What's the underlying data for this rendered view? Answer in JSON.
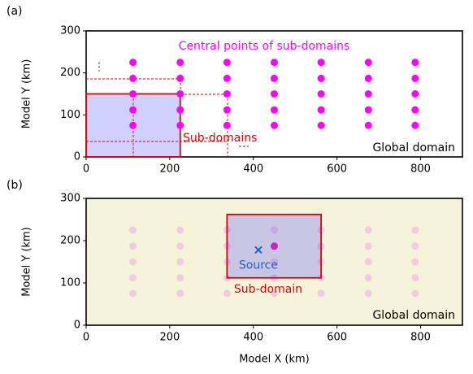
{
  "chart_data": [
    {
      "type": "scatter",
      "panel_label": "(a)",
      "ylabel": "Model Y (km)",
      "xlim": [
        0,
        900
      ],
      "ylim": [
        0,
        300
      ],
      "xticks": [
        0,
        200,
        400,
        600,
        800
      ],
      "yticks": [
        0,
        100,
        200,
        300
      ],
      "x": [
        112,
        225,
        337,
        450,
        562,
        675,
        787,
        112,
        225,
        337,
        450,
        562,
        675,
        787,
        112,
        225,
        337,
        450,
        562,
        675,
        787,
        112,
        225,
        337,
        450,
        562,
        675,
        787,
        112,
        225,
        337,
        450,
        562,
        675,
        787
      ],
      "values": [
        75,
        75,
        75,
        75,
        75,
        75,
        75,
        112,
        112,
        112,
        112,
        112,
        112,
        112,
        150,
        150,
        150,
        150,
        150,
        150,
        150,
        187,
        187,
        187,
        187,
        187,
        187,
        187,
        225,
        225,
        225,
        225,
        225,
        225,
        225
      ],
      "color": "#ff00ff",
      "domain_color": "#ffffff",
      "subdomain": {
        "x": [
          0,
          225
        ],
        "y": [
          0,
          150
        ]
      },
      "annotations": [
        "Central points of sub-domains",
        "Sub-domains",
        "Global domain"
      ]
    },
    {
      "type": "scatter",
      "panel_label": "(b)",
      "ylabel": "Model Y (km)",
      "xlabel": "Model X (km)",
      "xlim": [
        0,
        900
      ],
      "ylim": [
        0,
        300
      ],
      "xticks": [
        0,
        200,
        400,
        600,
        800
      ],
      "yticks": [
        0,
        100,
        200,
        300
      ],
      "x": [
        112,
        225,
        337,
        450,
        562,
        675,
        787,
        112,
        225,
        337,
        450,
        562,
        675,
        787,
        112,
        225,
        337,
        450,
        562,
        675,
        787,
        112,
        225,
        337,
        450,
        562,
        675,
        787,
        112,
        225,
        337,
        450,
        562,
        675,
        787
      ],
      "values": [
        75,
        75,
        75,
        75,
        75,
        75,
        75,
        112,
        112,
        112,
        112,
        112,
        112,
        112,
        150,
        150,
        150,
        150,
        150,
        150,
        150,
        187,
        187,
        187,
        187,
        187,
        187,
        187,
        225,
        225,
        225,
        225,
        225,
        225,
        225
      ],
      "color": "#f2cbe0",
      "domain_color": "#f5f3da",
      "subdomain": {
        "x": [
          337,
          562
        ],
        "y": [
          112,
          262
        ]
      },
      "highlight": {
        "x": 450,
        "y": 187,
        "color": "#cc22cc"
      },
      "source": {
        "x": 412,
        "y": 178,
        "label": "Source",
        "color": "#1f5fd0"
      },
      "annotations": [
        "Sub-domain",
        "Global domain"
      ]
    }
  ]
}
